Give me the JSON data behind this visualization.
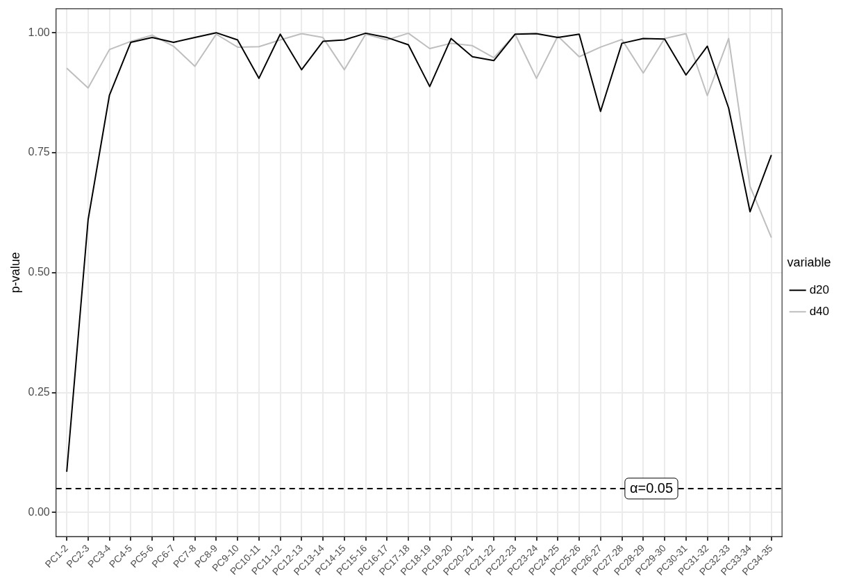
{
  "chart_data": {
    "type": "line",
    "ylabel": "p-value",
    "legend_title": "variable",
    "legend": "right",
    "grid": true,
    "marker": "none",
    "line_style": "solid",
    "categories": [
      "PC1-2",
      "PC2-3",
      "PC3-4",
      "PC4-5",
      "PC5-6",
      "PC6-7",
      "PC7-8",
      "PC8-9",
      "PC9-10",
      "PC10-11",
      "PC11-12",
      "PC12-13",
      "PC13-14",
      "PC14-15",
      "PC15-16",
      "PC16-17",
      "PC17-18",
      "PC18-19",
      "PC19-20",
      "PC20-21",
      "PC21-22",
      "PC22-23",
      "PC23-24",
      "PC24-25",
      "PC25-26",
      "PC26-27",
      "PC27-28",
      "PC28-29",
      "PC29-30",
      "PC30-31",
      "PC31-32",
      "PC32-33",
      "PC33-34",
      "PC34-35"
    ],
    "series": [
      {
        "name": "d20",
        "color": "#000000",
        "values": [
          0.085,
          0.61,
          0.87,
          0.98,
          0.99,
          0.98,
          0.99,
          1.0,
          0.985,
          0.905,
          0.997,
          0.923,
          0.982,
          0.985,
          0.999,
          0.99,
          0.975,
          0.888,
          0.988,
          0.95,
          0.942,
          0.997,
          0.998,
          0.99,
          0.997,
          0.836,
          0.978,
          0.988,
          0.987,
          0.912,
          0.972,
          0.843,
          0.627,
          0.745
        ]
      },
      {
        "name": "d40",
        "color": "#bebebe",
        "values": [
          0.926,
          0.885,
          0.965,
          0.982,
          0.995,
          0.972,
          0.93,
          0.997,
          0.97,
          0.971,
          0.985,
          0.998,
          0.99,
          0.923,
          0.997,
          0.985,
          0.999,
          0.967,
          0.978,
          0.973,
          0.948,
          0.997,
          0.905,
          0.993,
          0.95,
          0.97,
          0.986,
          0.916,
          0.988,
          0.998,
          0.869,
          0.988,
          0.68,
          0.573
        ]
      }
    ],
    "ylim": [
      -0.05,
      1.05
    ],
    "yticks": [
      {
        "value": 0,
        "label": "0.00"
      },
      {
        "value": 0.25,
        "label": "0.25"
      },
      {
        "value": 0.5,
        "label": "0.50"
      },
      {
        "value": 0.75,
        "label": "0.75"
      },
      {
        "value": 1,
        "label": "1.00"
      }
    ],
    "ref_lines": [
      {
        "axis": "y",
        "value": 0.05,
        "label": "α=0.05",
        "color": "#000000",
        "line_style": "dashed"
      }
    ]
  }
}
